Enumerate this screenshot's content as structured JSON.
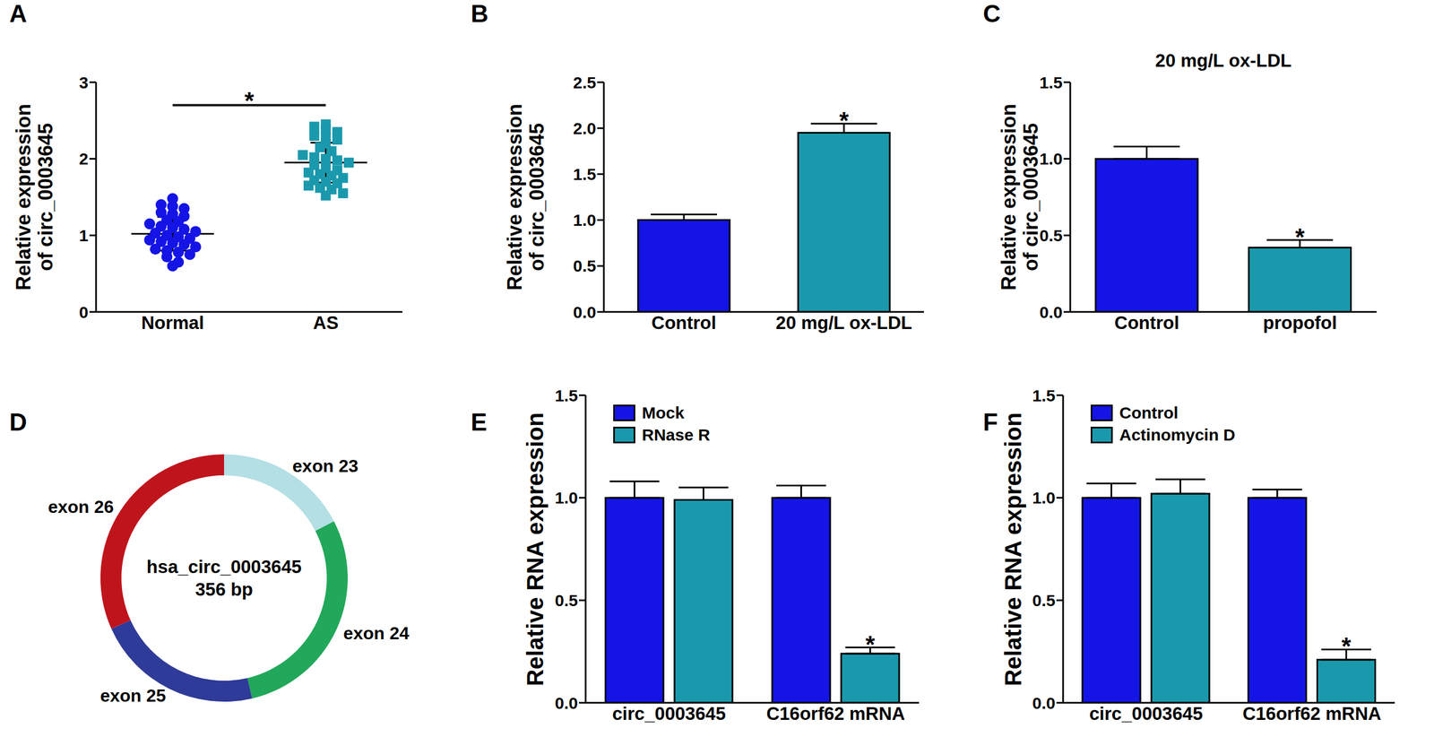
{
  "chart_data": [
    {
      "panel_label": "A",
      "type": "scatter",
      "y_label": [
        "Relative expression",
        "of circ_0003645"
      ],
      "ylim": [
        0,
        3
      ],
      "yticks": [
        0,
        1,
        2,
        3
      ],
      "series": [
        {
          "name": "Normal",
          "color": "#1414e6",
          "marker": "circle",
          "mean": 1.02,
          "sd": 0.22,
          "values": [
            1.48,
            1.4,
            1.38,
            1.35,
            1.3,
            1.28,
            1.25,
            1.2,
            1.18,
            1.15,
            1.12,
            1.1,
            1.08,
            1.05,
            1.03,
            1.0,
            0.98,
            0.96,
            0.94,
            0.92,
            0.9,
            0.88,
            0.85,
            0.82,
            0.8,
            0.78,
            0.75,
            0.72,
            0.65,
            0.6
          ]
        },
        {
          "name": "AS",
          "color": "#1a99ad",
          "marker": "square",
          "mean": 1.95,
          "sd": 0.26,
          "values": [
            2.45,
            2.42,
            2.38,
            2.35,
            2.3,
            2.28,
            2.25,
            2.2,
            2.15,
            2.1,
            2.05,
            2.02,
            2.0,
            1.98,
            1.95,
            1.92,
            1.88,
            1.85,
            1.82,
            1.8,
            1.78,
            1.75,
            1.72,
            1.7,
            1.68,
            1.65,
            1.62,
            1.6,
            1.55,
            1.52
          ]
        }
      ],
      "annotations": [
        {
          "text": "*",
          "between": [
            "Normal",
            "AS"
          ]
        }
      ]
    },
    {
      "panel_label": "B",
      "type": "bar",
      "y_label": [
        "Relative expression",
        "of circ_0003645"
      ],
      "ylim": [
        0,
        2.5
      ],
      "yticks": [
        {
          "value": 0,
          "label": "0.0"
        },
        0.5,
        {
          "value": 1,
          "label": "1.0"
        },
        1.5,
        {
          "value": 2,
          "label": "2.0"
        },
        2.5
      ],
      "categories": [
        "Control",
        "20 mg/L ox-LDL"
      ],
      "values": [
        1.0,
        1.95
      ],
      "errors": [
        0.06,
        0.1
      ],
      "colors": [
        "#1414e6",
        "#1a99ad"
      ],
      "significance": [
        null,
        "*"
      ]
    },
    {
      "panel_label": "C",
      "type": "bar",
      "title": "20 mg/L ox-LDL",
      "y_label": [
        "Relative expression",
        "of circ_0003645"
      ],
      "ylim": [
        0,
        1.5
      ],
      "yticks": [
        {
          "value": 0,
          "label": "0.0"
        },
        0.5,
        {
          "value": 1,
          "label": "1.0"
        },
        1.5
      ],
      "categories": [
        "Control",
        "propofol"
      ],
      "values": [
        1.0,
        0.42
      ],
      "errors": [
        0.08,
        0.05
      ],
      "colors": [
        "#1414e6",
        "#1a99ad"
      ],
      "significance": [
        null,
        "*"
      ]
    },
    {
      "panel_label": "D",
      "type": "pie",
      "categories": [
        "exon 23",
        "exon 24",
        "exon 25",
        "exon 26"
      ],
      "values": [
        62,
        103,
        78,
        113
      ],
      "colors": [
        "#b3dfe5",
        "#22a85a",
        "#2e3b98",
        "#c0141c"
      ],
      "annotations": [
        "hsa_circ_0003645",
        "356 bp"
      ]
    },
    {
      "panel_label": "E",
      "type": "bar",
      "y_label": "Relative RNA expression",
      "ylim": [
        0,
        1.5
      ],
      "yticks": [
        {
          "value": 0,
          "label": "0.0"
        },
        0.5,
        {
          "value": 1,
          "label": "1.0"
        },
        1.5
      ],
      "categories": [
        "circ_0003645",
        "C16orf62 mRNA"
      ],
      "legend": "upper left",
      "series": [
        {
          "name": "Mock",
          "color": "#1414e6",
          "values": [
            1.0,
            1.0
          ],
          "errors": [
            0.08,
            0.06
          ]
        },
        {
          "name": "RNase R",
          "color": "#1a99ad",
          "values": [
            0.99,
            0.24
          ],
          "errors": [
            0.06,
            0.03
          ],
          "significance": [
            null,
            "*"
          ]
        }
      ]
    },
    {
      "panel_label": "F",
      "type": "bar",
      "y_label": "Relative RNA expression",
      "ylim": [
        0,
        1.5
      ],
      "yticks": [
        {
          "value": 0,
          "label": "0.0"
        },
        0.5,
        {
          "value": 1,
          "label": "1.0"
        },
        1.5
      ],
      "categories": [
        "circ_0003645",
        "C16orf62 mRNA"
      ],
      "legend": "upper left",
      "series": [
        {
          "name": "Control",
          "color": "#1414e6",
          "values": [
            1.0,
            1.0
          ],
          "errors": [
            0.07,
            0.04
          ]
        },
        {
          "name": "Actinomycin D",
          "color": "#1a99ad",
          "values": [
            1.02,
            0.21
          ],
          "errors": [
            0.07,
            0.05
          ],
          "significance": [
            null,
            "*"
          ]
        }
      ]
    }
  ]
}
